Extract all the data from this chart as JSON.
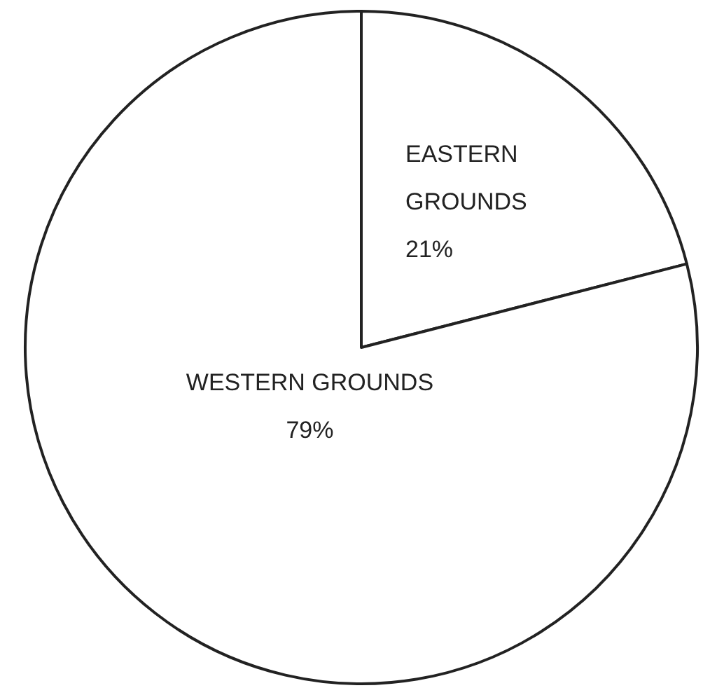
{
  "chart_data": {
    "type": "pie",
    "categories": [
      "EASTERN GROUNDS",
      "WESTERN GROUNDS"
    ],
    "values": [
      21,
      79
    ],
    "colors": [
      "#ffffff",
      "#ffffff"
    ],
    "value_labels": [
      "21%",
      "79%"
    ]
  }
}
